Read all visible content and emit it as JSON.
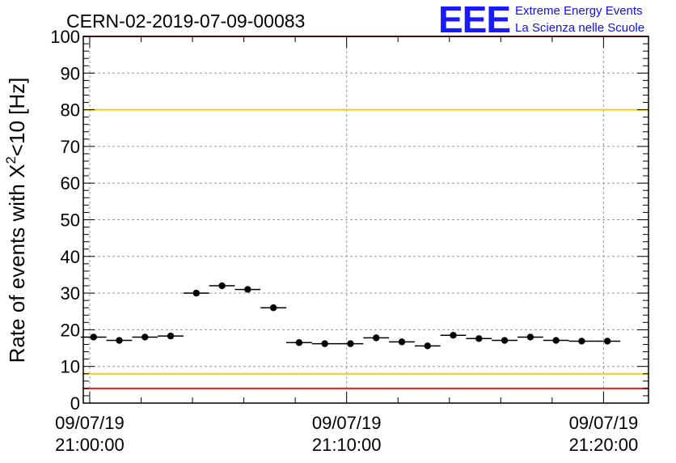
{
  "chart_data": {
    "type": "scatter",
    "title": "CERN-02-2019-07-09-00083",
    "ylabel_main": "Rate of events with X",
    "ylabel_sup": "2",
    "ylabel_tail": "<10 [Hz]",
    "ylim": [
      0,
      100
    ],
    "y_ticks": [
      "0",
      "10",
      "20",
      "30",
      "40",
      "50",
      "60",
      "70",
      "80",
      "90",
      "100"
    ],
    "x_ticks": [
      {
        "date": "09/07/19",
        "time": "21:00:00"
      },
      {
        "date": "09/07/19",
        "time": "21:10:00"
      },
      {
        "date": "09/07/19",
        "time": "21:20:00"
      }
    ],
    "x_range_minutes": [
      -0.25,
      21.75
    ],
    "bin_width_minutes": 1,
    "grid": true,
    "points": [
      {
        "t": 0.15,
        "y": 18.0
      },
      {
        "t": 1.15,
        "y": 17.1
      },
      {
        "t": 2.15,
        "y": 18.0
      },
      {
        "t": 3.15,
        "y": 18.3
      },
      {
        "t": 4.15,
        "y": 30.0
      },
      {
        "t": 5.15,
        "y": 32.0
      },
      {
        "t": 6.15,
        "y": 31.0
      },
      {
        "t": 7.15,
        "y": 26.0
      },
      {
        "t": 8.15,
        "y": 16.5
      },
      {
        "t": 9.15,
        "y": 16.2
      },
      {
        "t": 10.15,
        "y": 16.2
      },
      {
        "t": 11.15,
        "y": 17.8
      },
      {
        "t": 12.15,
        "y": 16.7
      },
      {
        "t": 13.15,
        "y": 15.6
      },
      {
        "t": 14.15,
        "y": 18.5
      },
      {
        "t": 15.15,
        "y": 17.6
      },
      {
        "t": 16.15,
        "y": 17.1
      },
      {
        "t": 17.15,
        "y": 18.0
      },
      {
        "t": 18.15,
        "y": 17.1
      },
      {
        "t": 19.15,
        "y": 16.9
      },
      {
        "t": 20.15,
        "y": 16.9
      }
    ],
    "reference_lines": [
      {
        "y": 100,
        "color": "#e8201e"
      },
      {
        "y": 80,
        "color": "#f2cc1a"
      },
      {
        "y": 8,
        "color": "#f2cc1a"
      },
      {
        "y": 4,
        "color": "#e8201e"
      }
    ]
  },
  "logo": {
    "mark": "EEE",
    "line1": "Extreme Energy Events",
    "line2": "La Scienza nelle Scuole"
  }
}
